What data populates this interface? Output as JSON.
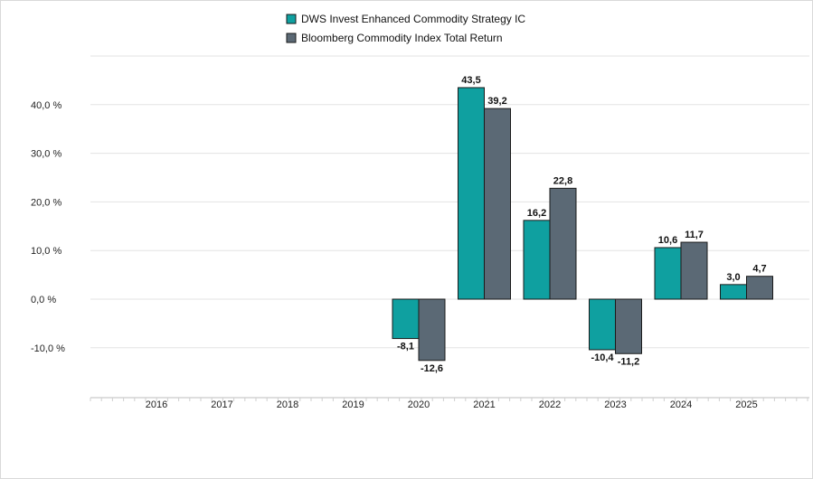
{
  "chart_data": {
    "type": "bar",
    "categories": [
      "2016",
      "2017",
      "2018",
      "2019",
      "2020",
      "2021",
      "2022",
      "2023",
      "2024",
      "2025"
    ],
    "series": [
      {
        "name": "DWS Invest Enhanced Commodity Strategy IC",
        "color": "#0fa0a0",
        "values": [
          null,
          null,
          null,
          null,
          -8.1,
          43.5,
          16.2,
          -10.4,
          10.6,
          3.0
        ],
        "labels": [
          "",
          "",
          "",
          "",
          "-8,1",
          "43,5",
          "16,2",
          "-10,4",
          "10,6",
          "3,0"
        ]
      },
      {
        "name": "Bloomberg Commodity Index Total Return",
        "color": "#5b6975",
        "values": [
          null,
          null,
          null,
          null,
          -12.6,
          39.2,
          22.8,
          -11.2,
          11.7,
          4.7
        ],
        "labels": [
          "",
          "",
          "",
          "",
          "-12,6",
          "39,2",
          "22,8",
          "-11,2",
          "11,7",
          "4,7"
        ]
      }
    ],
    "yticks": [
      {
        "value": 40,
        "label": "40,0 %"
      },
      {
        "value": 30,
        "label": "30,0 %"
      },
      {
        "value": 20,
        "label": "20,0 %"
      },
      {
        "value": 10,
        "label": "10,0 %"
      },
      {
        "value": 0,
        "label": "0,0 %"
      },
      {
        "value": -10,
        "label": "-10,0 %"
      }
    ],
    "ylim": [
      -20,
      50
    ],
    "grid": true,
    "legend_position": "top-center"
  }
}
